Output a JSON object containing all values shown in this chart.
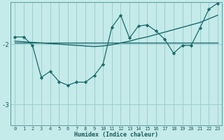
{
  "xlabel": "Humidex (Indice chaleur)",
  "ylabel": "",
  "bg_color": "#c5eaea",
  "grid_color": "#9ecece",
  "line_color": "#1a6b6b",
  "xlim": [
    -0.5,
    23.5
  ],
  "ylim": [
    -3.35,
    -1.3
  ],
  "yticks": [
    -3,
    -2
  ],
  "xticks": [
    0,
    1,
    2,
    3,
    4,
    5,
    6,
    7,
    8,
    9,
    10,
    11,
    12,
    13,
    14,
    15,
    16,
    17,
    18,
    19,
    20,
    21,
    22,
    23
  ],
  "series1_x": [
    0,
    1,
    2,
    3,
    4,
    5,
    6,
    7,
    8,
    9,
    10,
    11,
    12,
    13,
    14,
    15,
    16,
    17,
    18,
    19,
    20,
    21,
    22,
    23
  ],
  "series1_y": [
    -1.88,
    -1.88,
    -2.02,
    -2.55,
    -2.45,
    -2.62,
    -2.68,
    -2.63,
    -2.63,
    -2.52,
    -2.33,
    -1.72,
    -1.52,
    -1.9,
    -1.7,
    -1.68,
    -1.78,
    -1.92,
    -2.15,
    -2.02,
    -2.02,
    -1.73,
    -1.42,
    -1.32
  ],
  "series2_x": [
    0,
    1,
    2,
    3,
    4,
    5,
    6,
    7,
    8,
    9,
    10,
    11,
    12,
    13,
    14,
    15,
    16,
    17,
    18,
    19,
    20,
    21,
    22,
    23
  ],
  "series2_y": [
    -1.95,
    -1.96,
    -1.97,
    -1.98,
    -1.99,
    -2.0,
    -2.01,
    -2.02,
    -2.03,
    -2.04,
    -2.03,
    -2.01,
    -1.98,
    -1.95,
    -1.91,
    -1.88,
    -1.84,
    -1.8,
    -1.76,
    -1.72,
    -1.68,
    -1.64,
    -1.58,
    -1.52
  ],
  "series3_x": [
    0,
    23
  ],
  "series3_y": [
    -1.97,
    -1.97
  ]
}
